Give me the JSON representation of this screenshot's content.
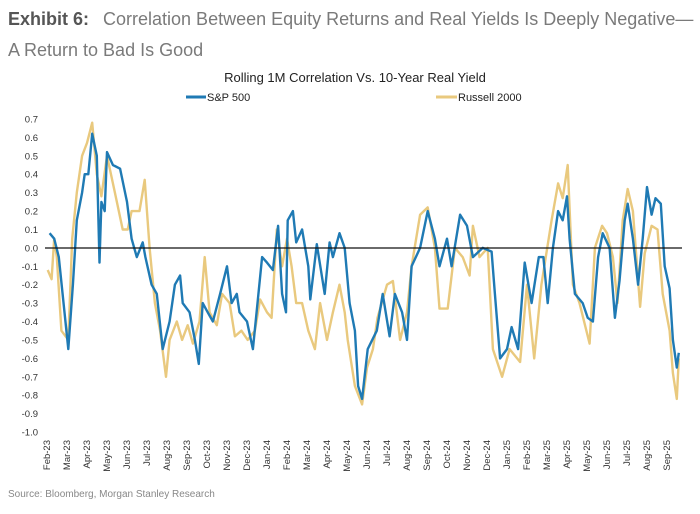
{
  "header": {
    "exhibit": "Exhibit 6:",
    "title": "Correlation Between Equity Returns and Real Yields Is Deeply Negative—A Return to Bad Is Good"
  },
  "source": "Source: Bloomberg, Morgan Stanley Research",
  "chart_data": {
    "type": "line",
    "title": "Rolling 1M Correlation Vs. 10-Year Real Yield",
    "xlabel": "",
    "ylabel": "",
    "ylim": [
      -1.0,
      0.7
    ],
    "y_ticks": [
      "0.7",
      "0.6",
      "0.5",
      "0.4",
      "0.3",
      "0.2",
      "0.1",
      "0.0",
      "-0.1",
      "-0.2",
      "-0.3",
      "-0.4",
      "-0.5",
      "-0.6",
      "-0.7",
      "-0.8",
      "-0.9",
      "-1.0"
    ],
    "x_ticks": [
      "Feb-23",
      "Mar-23",
      "Apr-23",
      "May-23",
      "Jun-23",
      "Jul-23",
      "Aug-23",
      "Sep-23",
      "Oct-23",
      "Nov-23",
      "Dec-23",
      "Jan-24",
      "Feb-24",
      "Mar-24",
      "Apr-24",
      "May-24",
      "Jun-24",
      "Jul-24",
      "Aug-24",
      "Sep-24",
      "Oct-24",
      "Nov-24",
      "Dec-24",
      "Jan-25",
      "Feb-25",
      "Mar-25",
      "Apr-25",
      "May-25",
      "Jun-25",
      "Jul-25",
      "Aug-25",
      "Sep-25"
    ],
    "grid": false,
    "zero_line": true,
    "legend_placement": "top",
    "series": [
      {
        "name": "S&P 500",
        "color": "#1f7ab4",
        "points": [
          [
            "2023-02-05",
            0.08
          ],
          [
            "2023-02-12",
            0.05
          ],
          [
            "2023-02-19",
            -0.05
          ],
          [
            "2023-03-03",
            -0.55
          ],
          [
            "2023-03-10",
            -0.2
          ],
          [
            "2023-03-16",
            0.15
          ],
          [
            "2023-03-24",
            0.3
          ],
          [
            "2023-03-28",
            0.4
          ],
          [
            "2023-04-03",
            0.4
          ],
          [
            "2023-04-09",
            0.62
          ],
          [
            "2023-04-16",
            0.5
          ],
          [
            "2023-04-20",
            -0.08
          ],
          [
            "2023-04-23",
            0.25
          ],
          [
            "2023-04-28",
            0.2
          ],
          [
            "2023-05-01",
            0.52
          ],
          [
            "2023-05-10",
            0.45
          ],
          [
            "2023-05-21",
            0.43
          ],
          [
            "2023-06-01",
            0.25
          ],
          [
            "2023-06-08",
            0.05
          ],
          [
            "2023-06-16",
            -0.05
          ],
          [
            "2023-06-25",
            0.03
          ],
          [
            "2023-06-29",
            -0.05
          ],
          [
            "2023-07-08",
            -0.2
          ],
          [
            "2023-07-16",
            -0.25
          ],
          [
            "2023-07-25",
            -0.55
          ],
          [
            "2023-08-05",
            -0.4
          ],
          [
            "2023-08-13",
            -0.2
          ],
          [
            "2023-08-21",
            -0.15
          ],
          [
            "2023-08-25",
            -0.3
          ],
          [
            "2023-09-05",
            -0.35
          ],
          [
            "2023-09-13",
            -0.5
          ],
          [
            "2023-09-19",
            -0.63
          ],
          [
            "2023-09-25",
            -0.3
          ],
          [
            "2023-10-02",
            -0.35
          ],
          [
            "2023-10-10",
            -0.4
          ],
          [
            "2023-10-21",
            -0.25
          ],
          [
            "2023-11-01",
            -0.1
          ],
          [
            "2023-11-08",
            -0.3
          ],
          [
            "2023-11-16",
            -0.25
          ],
          [
            "2023-11-20",
            -0.35
          ],
          [
            "2023-12-01",
            -0.4
          ],
          [
            "2023-12-10",
            -0.55
          ],
          [
            "2023-12-17",
            -0.3
          ],
          [
            "2023-12-24",
            -0.05
          ],
          [
            "2024-01-01",
            -0.08
          ],
          [
            "2024-01-10",
            -0.12
          ],
          [
            "2024-01-18",
            0.12
          ],
          [
            "2024-01-24",
            -0.25
          ],
          [
            "2024-01-30",
            -0.35
          ],
          [
            "2024-02-02",
            0.15
          ],
          [
            "2024-02-10",
            0.2
          ],
          [
            "2024-02-15",
            0.03
          ],
          [
            "2024-02-24",
            0.1
          ],
          [
            "2024-03-03",
            -0.1
          ],
          [
            "2024-03-06",
            -0.28
          ],
          [
            "2024-03-16",
            0.02
          ],
          [
            "2024-03-28",
            -0.25
          ],
          [
            "2024-04-05",
            0.03
          ],
          [
            "2024-04-10",
            -0.05
          ],
          [
            "2024-04-20",
            0.08
          ],
          [
            "2024-04-28",
            0.0
          ],
          [
            "2024-05-05",
            -0.3
          ],
          [
            "2024-05-13",
            -0.45
          ],
          [
            "2024-05-18",
            -0.75
          ],
          [
            "2024-05-24",
            -0.82
          ],
          [
            "2024-06-02",
            -0.55
          ],
          [
            "2024-06-16",
            -0.45
          ],
          [
            "2024-06-25",
            -0.25
          ],
          [
            "2024-07-05",
            -0.48
          ],
          [
            "2024-07-13",
            -0.25
          ],
          [
            "2024-07-24",
            -0.35
          ],
          [
            "2024-08-01",
            -0.5
          ],
          [
            "2024-08-08",
            -0.1
          ],
          [
            "2024-08-21",
            0.0
          ],
          [
            "2024-09-02",
            0.2
          ],
          [
            "2024-09-13",
            0.05
          ],
          [
            "2024-09-20",
            -0.1
          ],
          [
            "2024-10-01",
            0.05
          ],
          [
            "2024-10-08",
            -0.1
          ],
          [
            "2024-10-21",
            0.18
          ],
          [
            "2024-11-01",
            0.12
          ],
          [
            "2024-11-10",
            -0.05
          ],
          [
            "2024-11-25",
            0.0
          ],
          [
            "2024-12-08",
            -0.02
          ],
          [
            "2024-12-13",
            -0.25
          ],
          [
            "2024-12-21",
            -0.6
          ],
          [
            "2025-01-01",
            -0.55
          ],
          [
            "2025-01-08",
            -0.43
          ],
          [
            "2025-01-18",
            -0.55
          ],
          [
            "2025-01-28",
            -0.08
          ],
          [
            "2025-02-08",
            -0.3
          ],
          [
            "2025-02-19",
            -0.05
          ],
          [
            "2025-02-26",
            -0.05
          ],
          [
            "2025-03-02",
            -0.3
          ],
          [
            "2025-03-10",
            0.0
          ],
          [
            "2025-03-18",
            0.2
          ],
          [
            "2025-03-25",
            0.15
          ],
          [
            "2025-04-01",
            0.28
          ],
          [
            "2025-04-05",
            0.05
          ],
          [
            "2025-04-13",
            -0.25
          ],
          [
            "2025-04-25",
            -0.3
          ],
          [
            "2025-05-02",
            -0.38
          ],
          [
            "2025-05-10",
            -0.4
          ],
          [
            "2025-05-18",
            -0.05
          ],
          [
            "2025-05-25",
            0.08
          ],
          [
            "2025-06-05",
            0.0
          ],
          [
            "2025-06-13",
            -0.38
          ],
          [
            "2025-06-20",
            -0.18
          ],
          [
            "2025-06-28",
            0.15
          ],
          [
            "2025-07-02",
            0.24
          ],
          [
            "2025-07-10",
            0.05
          ],
          [
            "2025-07-18",
            -0.2
          ],
          [
            "2025-07-25",
            0.05
          ],
          [
            "2025-08-01",
            0.33
          ],
          [
            "2025-08-08",
            0.18
          ],
          [
            "2025-08-14",
            0.27
          ],
          [
            "2025-08-22",
            0.24
          ],
          [
            "2025-08-28",
            -0.1
          ],
          [
            "2025-09-05",
            -0.22
          ],
          [
            "2025-09-10",
            -0.5
          ],
          [
            "2025-09-16",
            -0.65
          ],
          [
            "2025-09-19",
            -0.57
          ]
        ]
      },
      {
        "name": "Russell 2000",
        "color": "#e9c97e",
        "points": [
          [
            "2023-02-02",
            -0.12
          ],
          [
            "2023-02-08",
            -0.17
          ],
          [
            "2023-02-12",
            0.05
          ],
          [
            "2023-02-16",
            -0.05
          ],
          [
            "2023-02-23",
            -0.45
          ],
          [
            "2023-03-03",
            -0.5
          ],
          [
            "2023-03-09",
            0.05
          ],
          [
            "2023-03-16",
            0.3
          ],
          [
            "2023-03-24",
            0.5
          ],
          [
            "2023-04-01",
            0.57
          ],
          [
            "2023-04-09",
            0.68
          ],
          [
            "2023-04-16",
            0.4
          ],
          [
            "2023-04-23",
            0.28
          ],
          [
            "2023-05-01",
            0.5
          ],
          [
            "2023-05-13",
            0.3
          ],
          [
            "2023-05-25",
            0.1
          ],
          [
            "2023-06-02",
            0.1
          ],
          [
            "2023-06-08",
            0.2
          ],
          [
            "2023-06-20",
            0.2
          ],
          [
            "2023-06-28",
            0.37
          ],
          [
            "2023-07-05",
            0.0
          ],
          [
            "2023-07-13",
            -0.3
          ],
          [
            "2023-07-21",
            -0.45
          ],
          [
            "2023-07-30",
            -0.7
          ],
          [
            "2023-08-05",
            -0.5
          ],
          [
            "2023-08-16",
            -0.4
          ],
          [
            "2023-08-24",
            -0.5
          ],
          [
            "2023-09-02",
            -0.42
          ],
          [
            "2023-09-10",
            -0.52
          ],
          [
            "2023-09-20",
            -0.4
          ],
          [
            "2023-09-28",
            -0.05
          ],
          [
            "2023-10-05",
            -0.35
          ],
          [
            "2023-10-16",
            -0.42
          ],
          [
            "2023-10-24",
            -0.25
          ],
          [
            "2023-11-05",
            -0.3
          ],
          [
            "2023-11-13",
            -0.48
          ],
          [
            "2023-11-23",
            -0.45
          ],
          [
            "2023-12-02",
            -0.5
          ],
          [
            "2023-12-13",
            -0.45
          ],
          [
            "2023-12-21",
            -0.28
          ],
          [
            "2024-01-01",
            -0.35
          ],
          [
            "2024-01-08",
            -0.38
          ],
          [
            "2024-01-16",
            0.1
          ],
          [
            "2024-01-24",
            -0.1
          ],
          [
            "2024-02-01",
            0.05
          ],
          [
            "2024-02-08",
            -0.1
          ],
          [
            "2024-02-15",
            -0.3
          ],
          [
            "2024-02-24",
            -0.3
          ],
          [
            "2024-03-03",
            -0.45
          ],
          [
            "2024-03-13",
            -0.55
          ],
          [
            "2024-03-21",
            -0.3
          ],
          [
            "2024-04-01",
            -0.5
          ],
          [
            "2024-04-10",
            -0.35
          ],
          [
            "2024-04-20",
            -0.2
          ],
          [
            "2024-04-28",
            -0.35
          ],
          [
            "2024-05-02",
            -0.5
          ],
          [
            "2024-05-13",
            -0.75
          ],
          [
            "2024-05-24",
            -0.85
          ],
          [
            "2024-06-01",
            -0.65
          ],
          [
            "2024-06-10",
            -0.55
          ],
          [
            "2024-06-17",
            -0.38
          ],
          [
            "2024-07-01",
            -0.2
          ],
          [
            "2024-07-10",
            -0.18
          ],
          [
            "2024-07-21",
            -0.5
          ],
          [
            "2024-08-01",
            -0.35
          ],
          [
            "2024-08-08",
            -0.1
          ],
          [
            "2024-08-21",
            0.18
          ],
          [
            "2024-09-02",
            0.22
          ],
          [
            "2024-09-13",
            0.0
          ],
          [
            "2024-09-20",
            -0.33
          ],
          [
            "2024-10-02",
            -0.33
          ],
          [
            "2024-10-13",
            0.0
          ],
          [
            "2024-10-25",
            -0.05
          ],
          [
            "2024-11-05",
            -0.15
          ],
          [
            "2024-11-10",
            0.12
          ],
          [
            "2024-11-20",
            -0.05
          ],
          [
            "2024-12-02",
            0.0
          ],
          [
            "2024-12-10",
            -0.55
          ],
          [
            "2024-12-24",
            -0.7
          ],
          [
            "2025-01-05",
            -0.55
          ],
          [
            "2025-01-21",
            -0.62
          ],
          [
            "2025-02-01",
            -0.2
          ],
          [
            "2025-02-12",
            -0.6
          ],
          [
            "2025-02-23",
            -0.2
          ],
          [
            "2025-03-08",
            0.15
          ],
          [
            "2025-03-18",
            0.35
          ],
          [
            "2025-03-25",
            0.27
          ],
          [
            "2025-04-02",
            0.45
          ],
          [
            "2025-04-10",
            -0.2
          ],
          [
            "2025-04-20",
            -0.3
          ],
          [
            "2025-05-05",
            -0.52
          ],
          [
            "2025-05-13",
            0.0
          ],
          [
            "2025-05-24",
            0.12
          ],
          [
            "2025-06-01",
            0.08
          ],
          [
            "2025-06-10",
            -0.05
          ],
          [
            "2025-06-17",
            -0.3
          ],
          [
            "2025-06-25",
            0.15
          ],
          [
            "2025-07-02",
            0.32
          ],
          [
            "2025-07-10",
            0.2
          ],
          [
            "2025-07-21",
            -0.32
          ],
          [
            "2025-07-28",
            -0.03
          ],
          [
            "2025-08-08",
            0.12
          ],
          [
            "2025-08-17",
            0.1
          ],
          [
            "2025-08-25",
            -0.25
          ],
          [
            "2025-09-05",
            -0.45
          ],
          [
            "2025-09-10",
            -0.68
          ],
          [
            "2025-09-16",
            -0.82
          ],
          [
            "2025-09-19",
            -0.6
          ]
        ]
      }
    ]
  }
}
